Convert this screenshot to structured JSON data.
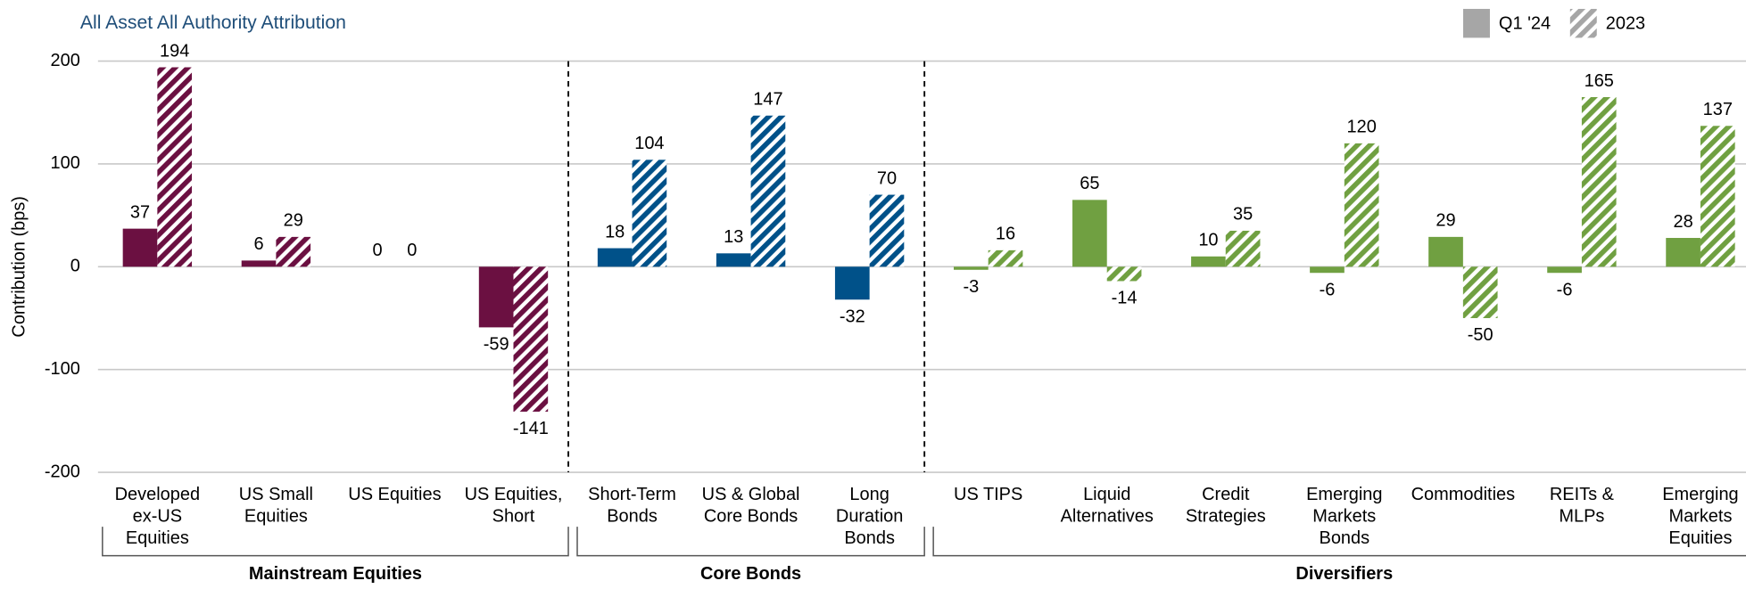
{
  "chart_data": {
    "type": "bar",
    "title": "All Asset All Authority Attribution",
    "y_label": "Contribution (bps)",
    "categories": [
      "Developed\nex-US\nEquities",
      "US Small\nEquities",
      "US Equities",
      "US Equities,\nShort",
      "Short-Term\nBonds",
      "US & Global\nCore Bonds",
      "Long\nDuration\nBonds",
      "US TIPS",
      "Liquid\nAlternatives",
      "Credit\nStrategies",
      "Emerging\nMarkets\nBonds",
      "Commodities",
      "REITs &\nMLPs",
      "Emerging\nMarkets\nEquities"
    ],
    "groups": [
      {
        "name": "Mainstream Equities",
        "color": "#6b1041",
        "count": 4
      },
      {
        "name": "Core Bonds",
        "color": "#005189",
        "count": 3
      },
      {
        "name": "Diversifiers",
        "color": "#70a041",
        "count": 7
      }
    ],
    "series": [
      {
        "name": "Q1 '24",
        "style": "solid",
        "color": "#a6a6a6",
        "values": [
          37,
          6,
          0,
          -59,
          18,
          13,
          -32,
          -3,
          65,
          10,
          -6,
          29,
          -6,
          28
        ]
      },
      {
        "name": "2023",
        "style": "hatched",
        "color": "#a6a6a6",
        "values": [
          194,
          29,
          0,
          -141,
          104,
          147,
          70,
          16,
          -14,
          35,
          120,
          -50,
          165,
          137
        ]
      }
    ],
    "ylim": [
      -200,
      200
    ],
    "yticks": [
      -200,
      -100,
      0,
      100,
      200
    ],
    "grid": true,
    "legend": "top-right"
  }
}
